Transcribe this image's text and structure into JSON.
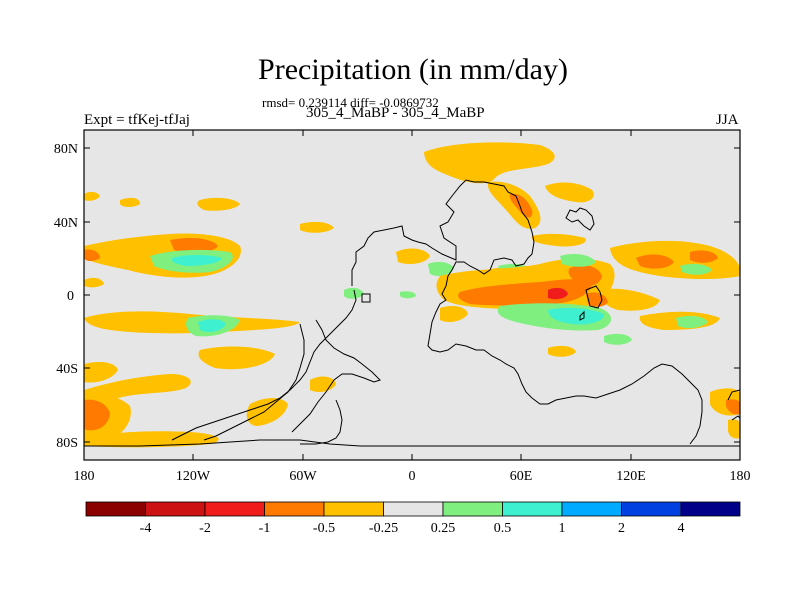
{
  "title": "Precipitation (in mm/day)",
  "stats": "rmsd= 0.239114 diff= -0.0869732",
  "case": "305_4_MaBP - 305_4_MaBP",
  "expt": "Expt = tfKej-tfJaj",
  "season": "JJA",
  "colors": {
    "ocean_neutral": "#e6e6e6",
    "coastline": "#000000",
    "palette": [
      "#8b0000",
      "#cc1212",
      "#f01c1c",
      "#ff7a00",
      "#ffc000",
      "#e6e6e6",
      "#7ff07f",
      "#3ff0d0",
      "#00aaff",
      "#0040e0",
      "#000088"
    ]
  },
  "map": {
    "lat_ticks": [
      {
        "value": 80,
        "label": "80N"
      },
      {
        "value": 40,
        "label": "40N"
      },
      {
        "value": 0,
        "label": "0"
      },
      {
        "value": -40,
        "label": "40S"
      },
      {
        "value": -80,
        "label": "80S"
      }
    ],
    "lon_ticks": [
      {
        "value": -180,
        "label": "180"
      },
      {
        "value": -120,
        "label": "120W"
      },
      {
        "value": -60,
        "label": "60W"
      },
      {
        "value": 0,
        "label": "0"
      },
      {
        "value": 60,
        "label": "60E"
      },
      {
        "value": 120,
        "label": "120E"
      },
      {
        "value": 180,
        "label": "180"
      }
    ]
  },
  "colorbar": {
    "labels": [
      "-4",
      "-2",
      "-1",
      "-0.5",
      "-0.25",
      "0.25",
      "0.5",
      "1",
      "2",
      "4"
    ]
  }
}
